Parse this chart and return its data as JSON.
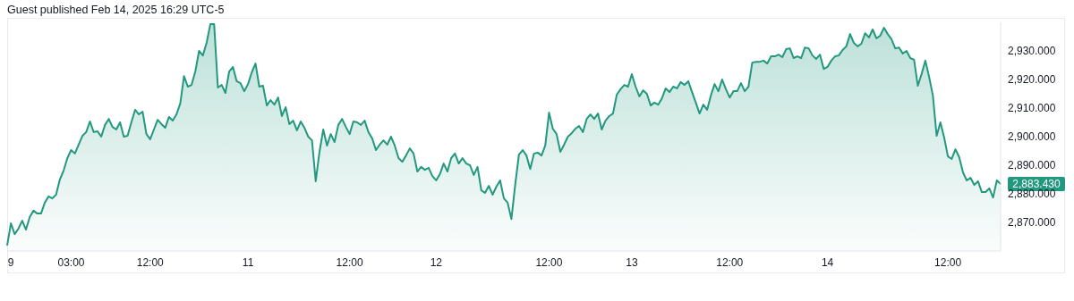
{
  "chart_data": {
    "type": "area",
    "title": "Guest published Feb 14, 2025 16:29 UTC-5",
    "categories": [
      null,
      "9",
      null,
      null,
      null,
      null,
      null,
      null,
      null,
      null,
      null,
      null,
      null,
      null,
      null,
      null,
      null,
      "03:00",
      null,
      null,
      null,
      null,
      null,
      null,
      null,
      null,
      null,
      null,
      null,
      null,
      null,
      null,
      null,
      null,
      null,
      null,
      null,
      null,
      "12:00",
      null,
      null,
      null,
      null,
      null,
      null,
      null,
      null,
      null,
      null,
      null,
      null,
      null,
      null,
      null,
      null,
      null,
      null,
      null,
      null,
      null,
      null,
      null,
      null,
      null,
      "11",
      null,
      null,
      null,
      null,
      null,
      null,
      null,
      null,
      null,
      null,
      null,
      null,
      null,
      null,
      null,
      null,
      null,
      null,
      null,
      null,
      null,
      null,
      null,
      null,
      null,
      null,
      "12:00",
      null,
      null,
      null,
      null,
      null,
      null,
      null,
      null,
      null,
      null,
      null,
      null,
      null,
      null,
      null,
      null,
      null,
      null,
      null,
      null,
      null,
      null,
      "12",
      null,
      null,
      null,
      null,
      null,
      null,
      null,
      null,
      null,
      null,
      null,
      null,
      null,
      null,
      null,
      null,
      null,
      null,
      null,
      null,
      null,
      null,
      null,
      null,
      null,
      null,
      null,
      null,
      null,
      "12:00",
      null,
      null,
      null,
      null,
      null,
      null,
      null,
      null,
      null,
      null,
      null,
      null,
      null,
      null,
      null,
      null,
      null,
      null,
      null,
      null,
      null,
      "13",
      null,
      null,
      null,
      null,
      null,
      null,
      null,
      null,
      null,
      null,
      null,
      null,
      null,
      null,
      null,
      null,
      null,
      null,
      null,
      null,
      null,
      null,
      null,
      null,
      null,
      "12:00",
      null,
      null,
      null,
      null,
      null,
      null,
      null,
      null,
      null,
      null,
      null,
      null,
      null,
      null,
      null,
      null,
      null,
      null,
      null,
      null,
      null,
      null,
      null,
      null,
      null,
      "14",
      null,
      null,
      null,
      null,
      null,
      null,
      null,
      null,
      null,
      null,
      null,
      null,
      null,
      null,
      null,
      null,
      null,
      null,
      null,
      null,
      null,
      null,
      null,
      null,
      null,
      null,
      null,
      null,
      null,
      null,
      null,
      "12:00",
      null,
      null,
      null,
      null,
      null,
      null,
      null,
      null,
      null,
      null,
      null,
      null,
      null,
      null
    ],
    "series": [
      {
        "color": "#22997f",
        "values": [
          2861.9,
          2869.7,
          2865.9,
          2867.8,
          2870.6,
          2867.5,
          2871.9,
          2874.1,
          2873.1,
          2873.1,
          2876.9,
          2879.1,
          2878.4,
          2879.7,
          2885.0,
          2888.1,
          2892.5,
          2895.3,
          2894.1,
          2897.2,
          2900.3,
          2901.6,
          2905.3,
          2901.6,
          2901.9,
          2900.0,
          2904.1,
          2906.2,
          2903.4,
          2902.5,
          2905.0,
          2900.0,
          2900.3,
          2905.0,
          2909.4,
          2907.8,
          2908.7,
          2900.9,
          2899.1,
          2902.5,
          2905.9,
          2904.4,
          2903.1,
          2906.9,
          2905.6,
          2907.8,
          2911.6,
          2921.2,
          2917.5,
          2918.1,
          2922.8,
          2930.0,
          2928.4,
          2932.8,
          2939.4,
          2939.4,
          2917.2,
          2918.1,
          2915.3,
          2922.8,
          2924.4,
          2919.4,
          2918.7,
          2915.9,
          2918.4,
          2922.5,
          2925.6,
          2917.5,
          2917.8,
          2910.9,
          2912.8,
          2911.2,
          2913.7,
          2907.2,
          2910.3,
          2904.4,
          2905.6,
          2902.2,
          2905.3,
          2903.1,
          2900.0,
          2898.7,
          2884.4,
          2894.7,
          2902.5,
          2896.9,
          2900.9,
          2898.1,
          2904.1,
          2906.2,
          2903.4,
          2900.9,
          2905.3,
          2905.0,
          2904.1,
          2905.6,
          2901.6,
          2899.4,
          2895.3,
          2897.2,
          2898.7,
          2897.2,
          2900.0,
          2896.9,
          2892.5,
          2891.2,
          2893.4,
          2895.9,
          2894.1,
          2887.8,
          2889.4,
          2888.4,
          2889.1,
          2886.2,
          2884.7,
          2886.9,
          2890.6,
          2887.8,
          2892.5,
          2894.1,
          2890.6,
          2892.5,
          2890.6,
          2890.0,
          2886.6,
          2889.4,
          2881.2,
          2880.3,
          2882.8,
          2879.7,
          2882.5,
          2884.7,
          2878.4,
          2876.9,
          2871.2,
          2883.1,
          2893.7,
          2895.3,
          2893.4,
          2888.7,
          2894.1,
          2894.4,
          2893.4,
          2896.9,
          2908.4,
          2902.8,
          2900.9,
          2894.7,
          2897.2,
          2900.0,
          2901.2,
          2902.8,
          2903.7,
          2901.6,
          2906.2,
          2907.8,
          2906.2,
          2908.1,
          2902.5,
          2905.6,
          2907.2,
          2908.1,
          2914.7,
          2916.6,
          2918.1,
          2917.5,
          2921.9,
          2917.5,
          2914.1,
          2916.2,
          2915.0,
          2910.9,
          2911.9,
          2911.2,
          2913.4,
          2916.9,
          2915.6,
          2917.5,
          2916.9,
          2919.1,
          2918.1,
          2919.4,
          2915.6,
          2911.9,
          2908.1,
          2911.2,
          2909.4,
          2914.4,
          2918.4,
          2915.9,
          2920.0,
          2916.6,
          2913.7,
          2915.9,
          2915.9,
          2918.7,
          2915.9,
          2917.5,
          2925.9,
          2926.2,
          2926.2,
          2926.6,
          2925.6,
          2928.1,
          2928.1,
          2928.7,
          2927.8,
          2930.6,
          2930.9,
          2927.5,
          2928.1,
          2927.5,
          2931.2,
          2930.9,
          2928.4,
          2927.2,
          2928.7,
          2923.7,
          2924.4,
          2926.6,
          2928.1,
          2928.4,
          2930.3,
          2931.6,
          2935.9,
          2932.8,
          2931.6,
          2932.5,
          2936.2,
          2934.7,
          2937.5,
          2934.4,
          2935.3,
          2938.1,
          2935.9,
          2934.1,
          2930.9,
          2931.2,
          2929.1,
          2930.0,
          2927.5,
          2926.9,
          2917.8,
          2921.9,
          2926.6,
          2920.9,
          2914.4,
          2900.3,
          2905.0,
          2899.7,
          2893.1,
          2892.2,
          2895.6,
          2892.8,
          2887.5,
          2884.7,
          2885.6,
          2883.1,
          2884.4,
          2880.6,
          2880.6,
          2881.9,
          2878.7,
          2884.7,
          2883.43
        ]
      }
    ],
    "ylim": [
      2860,
      2940
    ],
    "yticks": [
      {
        "value": 2870,
        "label": "2,870.000"
      },
      {
        "value": 2880,
        "label": "2,880.000"
      },
      {
        "value": 2890,
        "label": "2,890.000"
      },
      {
        "value": 2900,
        "label": "2,900.000"
      },
      {
        "value": 2910,
        "label": "2,910.000"
      },
      {
        "value": 2920,
        "label": "2,920.000"
      },
      {
        "value": 2930,
        "label": "2,930.000"
      }
    ],
    "annotations": [
      "2,883.430"
    ]
  }
}
